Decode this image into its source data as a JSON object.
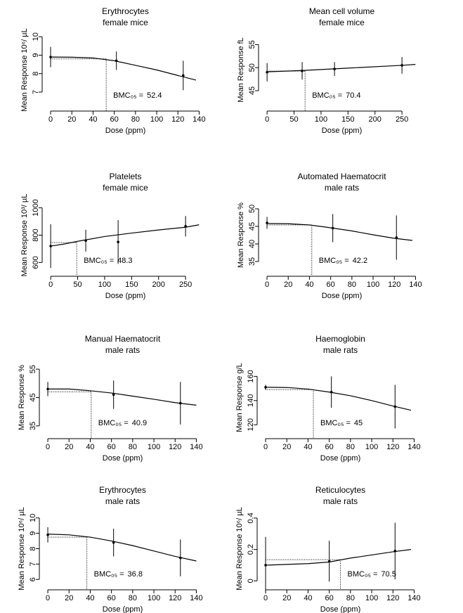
{
  "chart_data": [
    {
      "type": "scatter",
      "title": "Erythrocytes",
      "subtitle": "female mice",
      "xlabel": "Dose (ppm)",
      "ylabel": "Mean Response 10⁶/ µL",
      "x": [
        0,
        62,
        125
      ],
      "values": [
        8.9,
        8.7,
        7.9
      ],
      "errors": [
        0.55,
        0.5,
        0.8
      ],
      "fit_x": [
        0,
        20,
        40,
        60,
        80,
        100,
        120,
        137
      ],
      "fit_y": [
        8.9,
        8.89,
        8.85,
        8.7,
        8.45,
        8.2,
        7.9,
        7.65
      ],
      "bmc": 52.4,
      "bmr": 8.8,
      "bmc_label": "BMC₀₅ =",
      "xlim": [
        -4,
        145
      ],
      "xticks": [
        0,
        20,
        40,
        60,
        80,
        100,
        120,
        140
      ],
      "ylim": [
        6.2,
        10.2
      ],
      "yticks": [
        7,
        8,
        9,
        10
      ]
    },
    {
      "type": "scatter",
      "title": "Mean cell volume",
      "subtitle": "female mice",
      "xlabel": "Dose (ppm)",
      "ylabel": "Mean Response fL",
      "x": [
        0,
        65,
        125,
        250
      ],
      "values": [
        49,
        49.3,
        49.7,
        50.5
      ],
      "errors": [
        2,
        1.9,
        1.5,
        1.8
      ],
      "fit_x": [
        0,
        70,
        150,
        250,
        275
      ],
      "fit_y": [
        49.1,
        49.4,
        49.9,
        50.5,
        50.7
      ],
      "bmc": 70.4,
      "bmr": 49.25,
      "bmc_label": "BMC₀₅ =",
      "xlim": [
        -8,
        285
      ],
      "xticks": [
        0,
        50,
        100,
        150,
        200,
        250
      ],
      "ylim": [
        41.5,
        57.5
      ],
      "yticks": [
        45,
        50,
        55
      ]
    },
    {
      "type": "scatter",
      "title": "Platelets",
      "subtitle": "female mice",
      "xlabel": "Dose (ppm)",
      "ylabel": "Mean Response 10³/ µL",
      "x": [
        0,
        65,
        125,
        250
      ],
      "values": [
        720,
        760,
        750,
        865
      ],
      "errors": [
        160,
        80,
        160,
        75
      ],
      "fit_x": [
        0,
        25,
        50,
        100,
        150,
        200,
        250,
        275
      ],
      "fit_y": [
        720,
        735,
        755,
        790,
        815,
        838,
        858,
        876
      ],
      "bmc": 48.3,
      "bmr": 746,
      "bmc_label": "BMC₀₅ =",
      "xlim": [
        -8,
        285
      ],
      "xticks": [
        0,
        50,
        100,
        150,
        200,
        250
      ],
      "ylim": [
        530,
        1070
      ],
      "yticks": [
        600,
        800,
        1000
      ]
    },
    {
      "type": "scatter",
      "title": "Automated Haematocrit",
      "subtitle": "male rats",
      "xlabel": "Dose (ppm)",
      "ylabel": "Mean Response %",
      "x": [
        0,
        62,
        122
      ],
      "values": [
        46,
        44.5,
        41.8
      ],
      "errors": [
        1.7,
        4,
        6.3
      ],
      "fit_x": [
        0,
        20,
        40,
        60,
        80,
        100,
        120,
        137
      ],
      "fit_y": [
        45.8,
        45.75,
        45.4,
        44.6,
        43.7,
        42.6,
        41.6,
        41
      ],
      "bmc": 42.2,
      "bmr": 45.4,
      "bmc_label": "BMC₀₅ =",
      "xlim": [
        -4,
        145
      ],
      "xticks": [
        0,
        20,
        40,
        60,
        80,
        100,
        120,
        140
      ],
      "ylim": [
        32,
        53
      ],
      "yticks": [
        35,
        40,
        45,
        50
      ]
    },
    {
      "type": "scatter",
      "title": "Manual Haematocrit",
      "subtitle": "male rats",
      "xlabel": "Dose (ppm)",
      "ylabel": "Mean Response %",
      "x": [
        0,
        62,
        125
      ],
      "values": [
        48,
        46,
        43
      ],
      "errors": [
        2.5,
        5,
        7.5
      ],
      "fit_x": [
        0,
        20,
        40,
        60,
        80,
        100,
        120,
        140
      ],
      "fit_y": [
        48,
        48,
        47.4,
        46.6,
        45.5,
        44.4,
        43.2,
        42.3
      ],
      "bmc": 40.9,
      "bmr": 47,
      "bmc_label": "BMC₀₅ =",
      "xlim": [
        -4,
        145
      ],
      "xticks": [
        0,
        20,
        40,
        60,
        80,
        100,
        120,
        140
      ],
      "ylim": [
        32,
        58
      ],
      "yticks": [
        35,
        45,
        55
      ]
    },
    {
      "type": "scatter",
      "title": "Haemoglobin",
      "subtitle": "male rats",
      "xlabel": "Dose (ppm)",
      "ylabel": "Mean Response g/L",
      "x": [
        0,
        62,
        122
      ],
      "values": [
        151,
        147,
        135
      ],
      "errors": [
        2,
        13,
        18
      ],
      "fit_x": [
        0,
        20,
        40,
        60,
        80,
        100,
        120,
        137
      ],
      "fit_y": [
        151,
        150.8,
        149.5,
        147,
        144,
        140,
        135.5,
        132
      ],
      "bmc": 45,
      "bmr": 149,
      "bmc_label": "BMC₀₅ =",
      "xlim": [
        -4,
        145
      ],
      "xticks": [
        0,
        20,
        40,
        60,
        80,
        100,
        120,
        140
      ],
      "ylim": [
        112,
        173
      ],
      "yticks": [
        120,
        140,
        160
      ]
    },
    {
      "type": "scatter",
      "title": "Erythrocytes",
      "subtitle": "male rats",
      "xlabel": "Dose (ppm)",
      "ylabel": "Mean Response 10⁶/ µL",
      "x": [
        0,
        62,
        125
      ],
      "values": [
        8.9,
        8.4,
        7.4
      ],
      "errors": [
        0.5,
        0.9,
        1.2
      ],
      "fit_x": [
        0,
        20,
        40,
        60,
        80,
        100,
        120,
        140
      ],
      "fit_y": [
        8.95,
        8.9,
        8.75,
        8.5,
        8.2,
        7.85,
        7.5,
        7.2
      ],
      "bmc": 36.8,
      "bmr": 8.75,
      "bmc_label": "BMC₀₅ =",
      "xlim": [
        -4,
        145
      ],
      "xticks": [
        0,
        20,
        40,
        60,
        80,
        100,
        120,
        140
      ],
      "ylim": [
        5.6,
        10.4
      ],
      "yticks": [
        6,
        7,
        8,
        9,
        10
      ]
    },
    {
      "type": "scatter",
      "title": "Reticulocytes",
      "subtitle": "male rats",
      "xlabel": "Dose (ppm)",
      "ylabel": "Mean Response 10⁶/ µL",
      "x": [
        0,
        60,
        122
      ],
      "values": [
        0.1,
        0.125,
        0.19
      ],
      "errors": [
        0.18,
        0.13,
        0.18
      ],
      "fit_x": [
        0,
        40,
        60,
        80,
        100,
        120,
        137
      ],
      "fit_y": [
        0.1,
        0.11,
        0.12,
        0.145,
        0.165,
        0.185,
        0.2
      ],
      "bmc": 70.5,
      "bmr": 0.135,
      "bmc_label": "BMC₀₅ =",
      "xlim": [
        -4,
        145
      ],
      "xticks": [
        0,
        20,
        40,
        60,
        80,
        100,
        120,
        140
      ],
      "ylim": [
        -0.03,
        0.44
      ],
      "yticks": [
        0,
        0.2,
        0.4
      ]
    }
  ]
}
